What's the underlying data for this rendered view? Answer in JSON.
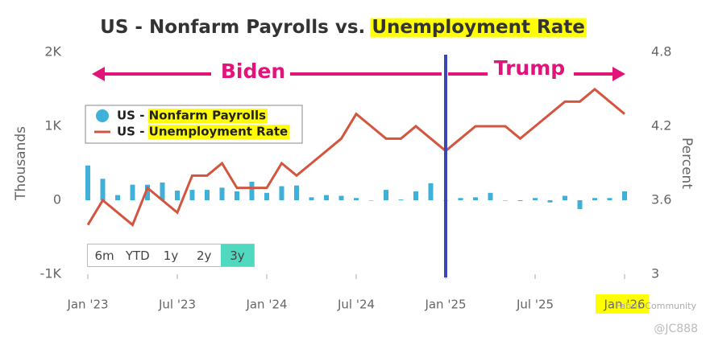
{
  "chart_data": {
    "type": "bar_line",
    "title": "US - Nonfarm Payrolls vs.",
    "title_highlight": "Unemployment Rate",
    "y_label": "Thousands",
    "y2_label": "Percent",
    "categories": [
      "Jan '23",
      null,
      null,
      null,
      null,
      null,
      "Jul '23",
      null,
      null,
      null,
      null,
      null,
      "Jan '24",
      null,
      null,
      null,
      null,
      null,
      "Jul '24",
      null,
      null,
      null,
      null,
      null,
      "Jan '25",
      null,
      null,
      null,
      null,
      null,
      "Jul '25",
      null,
      null,
      null,
      null,
      null,
      "Jan '26"
    ],
    "series": [
      {
        "name": "US - Nonfarm Payrolls",
        "type": "bar",
        "axis": "y",
        "color": "#3fb1d9",
        "values": [
          470,
          290,
          70,
          210,
          210,
          240,
          130,
          140,
          140,
          170,
          120,
          250,
          100,
          190,
          200,
          40,
          70,
          60,
          30,
          0,
          140,
          10,
          120,
          230,
          0,
          30,
          40,
          100,
          0,
          -10,
          30,
          -30,
          60,
          -120,
          30,
          30,
          120
        ]
      },
      {
        "name": "US - Unemployment Rate",
        "type": "line",
        "axis": "y2",
        "color": "#d4553f",
        "values": [
          3.4,
          3.6,
          3.5,
          3.4,
          3.7,
          3.6,
          3.5,
          3.8,
          3.8,
          3.9,
          3.7,
          3.7,
          3.7,
          3.9,
          3.8,
          3.9,
          4.0,
          4.1,
          4.3,
          4.2,
          4.1,
          4.1,
          4.2,
          4.1,
          4.0,
          4.1,
          4.2,
          4.2,
          4.2,
          4.1,
          4.2,
          4.3,
          4.4,
          4.4,
          4.5,
          4.4,
          4.3
        ]
      }
    ],
    "ylim": [
      -1000,
      2000
    ],
    "yticks": [
      {
        "value": -1000,
        "label": "-1K"
      },
      0,
      {
        "value": 1000,
        "label": "1K"
      },
      {
        "value": 2000,
        "label": "2K"
      }
    ],
    "y2lim": [
      3,
      4.8
    ],
    "y2ticks": [
      3,
      3.6,
      4.2,
      4.8
    ],
    "annotations": [
      "Biden",
      "Trump"
    ],
    "range_buttons": [
      "6m",
      "YTD",
      "1y",
      "2y",
      "3y"
    ],
    "watermark": [
      "Fabric Community",
      "@JC888"
    ]
  }
}
